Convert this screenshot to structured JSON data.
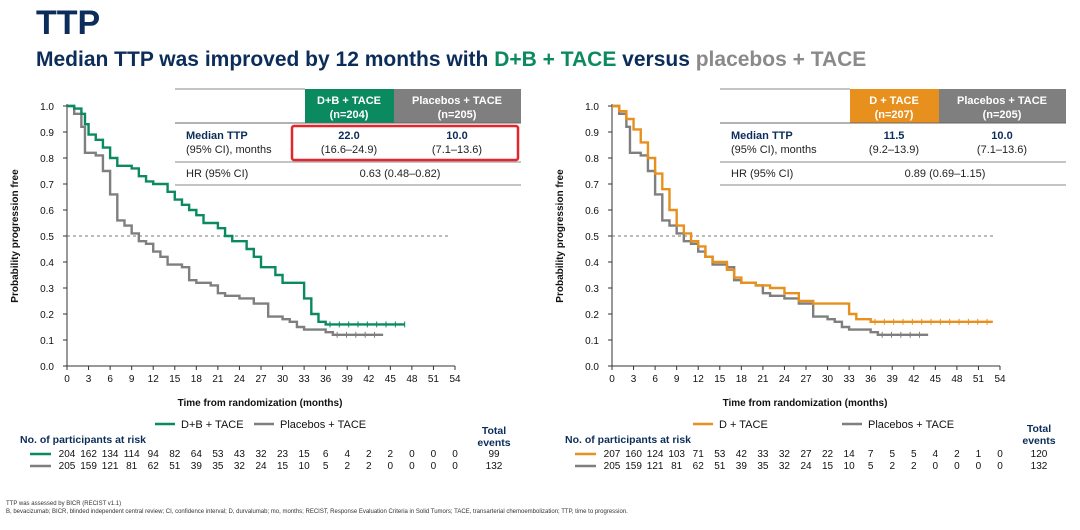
{
  "header": {
    "title": "TTP",
    "subtitle_pre": "Median TTP was improved by 12 months with ",
    "subtitle_trt": "D+B + TACE",
    "subtitle_mid": " versus ",
    "subtitle_ctrl": "placebos + TACE"
  },
  "colors": {
    "navy": "#0c2d5a",
    "green": "#0a8a5e",
    "grey": "#7f7f7f",
    "orange": "#e8901e",
    "highlight": "#e3262a"
  },
  "footnotes": [
    "TTP was assessed by BICR (RECIST v1.1)",
    "B, bevacizumab; BICR, blinded independent central review; CI, confidence interval; D, durvalumab; mo, months; RECIST, Response Evaluation Criteria in Solid Tumors; TACE, transarterial chemoembolization; TTP, time to progression."
  ],
  "chart_data": [
    {
      "type": "line",
      "subtype": "kaplan-meier",
      "xlabel": "Time from randomization (months)",
      "ylabel": "Probability progression free",
      "xlim": [
        0,
        54
      ],
      "ylim": [
        0,
        1
      ],
      "xticks": [
        "0",
        "3",
        "6",
        "9",
        "12",
        "15",
        "18",
        "21",
        "24",
        "27",
        "30",
        "33",
        "36",
        "39",
        "42",
        "45",
        "48",
        "51",
        "54"
      ],
      "yticks": [
        "0.0",
        "0.1",
        "0.2",
        "0.3",
        "0.4",
        "0.5",
        "0.6",
        "0.7",
        "0.8",
        "0.9",
        "1.0"
      ],
      "reference_line": 0.5,
      "highlight_medians": true,
      "series": [
        {
          "name": "D+B + TACE",
          "color": "#0a8a5e",
          "points": [
            [
              0,
              1.0
            ],
            [
              1,
              0.99
            ],
            [
              2,
              0.97
            ],
            [
              2.5,
              0.93
            ],
            [
              3,
              0.89
            ],
            [
              4,
              0.87
            ],
            [
              5,
              0.84
            ],
            [
              6,
              0.8
            ],
            [
              7,
              0.77
            ],
            [
              9,
              0.76
            ],
            [
              10,
              0.73
            ],
            [
              11,
              0.71
            ],
            [
              12,
              0.7
            ],
            [
              14,
              0.67
            ],
            [
              15,
              0.64
            ],
            [
              16,
              0.62
            ],
            [
              17,
              0.6
            ],
            [
              18,
              0.58
            ],
            [
              19,
              0.55
            ],
            [
              21,
              0.53
            ],
            [
              22,
              0.5
            ],
            [
              23,
              0.48
            ],
            [
              25,
              0.45
            ],
            [
              26,
              0.42
            ],
            [
              27,
              0.38
            ],
            [
              29,
              0.35
            ],
            [
              30,
              0.32
            ],
            [
              33,
              0.26
            ],
            [
              34,
              0.2
            ],
            [
              35,
              0.17
            ],
            [
              36,
              0.16
            ],
            [
              47,
              0.16
            ]
          ],
          "end": 47
        },
        {
          "name": "Placebos + TACE",
          "color": "#7f7f7f",
          "points": [
            [
              0,
              1.0
            ],
            [
              1,
              0.97
            ],
            [
              2,
              0.92
            ],
            [
              2.5,
              0.82
            ],
            [
              4,
              0.81
            ],
            [
              5,
              0.75
            ],
            [
              6,
              0.66
            ],
            [
              7,
              0.56
            ],
            [
              8,
              0.54
            ],
            [
              9,
              0.51
            ],
            [
              10,
              0.48
            ],
            [
              11,
              0.47
            ],
            [
              12,
              0.44
            ],
            [
              13,
              0.42
            ],
            [
              14,
              0.39
            ],
            [
              16,
              0.38
            ],
            [
              17,
              0.33
            ],
            [
              18,
              0.32
            ],
            [
              20,
              0.31
            ],
            [
              21,
              0.28
            ],
            [
              22,
              0.27
            ],
            [
              24,
              0.26
            ],
            [
              26,
              0.24
            ],
            [
              28,
              0.19
            ],
            [
              30,
              0.18
            ],
            [
              31,
              0.17
            ],
            [
              32,
              0.15
            ],
            [
              33,
              0.14
            ],
            [
              36,
              0.13
            ],
            [
              37,
              0.12
            ],
            [
              44,
              0.12
            ]
          ],
          "end": 44
        }
      ],
      "table": {
        "trt_header_l1": "D+B + TACE",
        "trt_header_l2": "(n=204)",
        "ctrl_header_l1": "Placebos + TACE",
        "ctrl_header_l2": "(n=205)",
        "median_label": "Median TTP",
        "ci_label": "(95% CI), months",
        "trt_median": "22.0",
        "trt_ci": "(16.6–24.9)",
        "ctrl_median": "10.0",
        "ctrl_ci": "(7.1–13.6)",
        "hr_label": "HR (95% CI)",
        "hr_value": "0.63 (0.48–0.82)"
      },
      "legend": [
        "D+B + TACE",
        "Placebos + TACE"
      ],
      "risk_label": "No. of participants at risk",
      "total_events_label": [
        "Total",
        "events"
      ],
      "risk_rows": [
        {
          "color": "#0a8a5e",
          "values": [
            "204",
            "162",
            "134",
            "114",
            "94",
            "82",
            "64",
            "53",
            "43",
            "32",
            "23",
            "15",
            "6",
            "4",
            "2",
            "2",
            "0",
            "0",
            "0"
          ],
          "events": "99"
        },
        {
          "color": "#7f7f7f",
          "values": [
            "205",
            "159",
            "121",
            "81",
            "62",
            "51",
            "39",
            "35",
            "32",
            "24",
            "15",
            "10",
            "5",
            "2",
            "2",
            "0",
            "0",
            "0",
            "0"
          ],
          "events": "132"
        }
      ]
    },
    {
      "type": "line",
      "subtype": "kaplan-meier",
      "xlabel": "Time from randomization (months)",
      "ylabel": "Probability progression free",
      "xlim": [
        0,
        54
      ],
      "ylim": [
        0,
        1
      ],
      "xticks": [
        "0",
        "3",
        "6",
        "9",
        "12",
        "15",
        "18",
        "21",
        "24",
        "27",
        "30",
        "33",
        "36",
        "39",
        "42",
        "45",
        "48",
        "51",
        "54"
      ],
      "yticks": [
        "0.0",
        "0.1",
        "0.2",
        "0.3",
        "0.4",
        "0.5",
        "0.6",
        "0.7",
        "0.8",
        "0.9",
        "1.0"
      ],
      "reference_line": 0.5,
      "highlight_medians": false,
      "series": [
        {
          "name": "D + TACE",
          "color": "#e8901e",
          "points": [
            [
              0,
              1.0
            ],
            [
              1,
              0.98
            ],
            [
              2,
              0.95
            ],
            [
              3,
              0.91
            ],
            [
              4,
              0.86
            ],
            [
              5,
              0.8
            ],
            [
              6,
              0.74
            ],
            [
              7,
              0.68
            ],
            [
              8,
              0.6
            ],
            [
              9,
              0.54
            ],
            [
              10,
              0.51
            ],
            [
              11,
              0.48
            ],
            [
              12,
              0.46
            ],
            [
              13,
              0.42
            ],
            [
              14,
              0.4
            ],
            [
              16,
              0.37
            ],
            [
              17,
              0.34
            ],
            [
              18,
              0.32
            ],
            [
              20,
              0.31
            ],
            [
              22,
              0.3
            ],
            [
              24,
              0.28
            ],
            [
              26,
              0.25
            ],
            [
              28,
              0.24
            ],
            [
              31,
              0.24
            ],
            [
              33,
              0.2
            ],
            [
              34,
              0.18
            ],
            [
              36,
              0.17
            ],
            [
              53,
              0.17
            ]
          ],
          "end": 53
        },
        {
          "name": "Placebos + TACE",
          "color": "#7f7f7f",
          "points": [
            [
              0,
              1.0
            ],
            [
              1,
              0.97
            ],
            [
              2,
              0.92
            ],
            [
              2.5,
              0.82
            ],
            [
              4,
              0.81
            ],
            [
              5,
              0.75
            ],
            [
              6,
              0.66
            ],
            [
              7,
              0.56
            ],
            [
              8,
              0.54
            ],
            [
              9,
              0.51
            ],
            [
              10,
              0.48
            ],
            [
              11,
              0.47
            ],
            [
              12,
              0.44
            ],
            [
              13,
              0.42
            ],
            [
              14,
              0.39
            ],
            [
              16,
              0.38
            ],
            [
              17,
              0.33
            ],
            [
              18,
              0.32
            ],
            [
              20,
              0.31
            ],
            [
              21,
              0.28
            ],
            [
              22,
              0.27
            ],
            [
              24,
              0.26
            ],
            [
              26,
              0.24
            ],
            [
              28,
              0.19
            ],
            [
              30,
              0.18
            ],
            [
              31,
              0.17
            ],
            [
              32,
              0.15
            ],
            [
              33,
              0.14
            ],
            [
              36,
              0.13
            ],
            [
              37,
              0.12
            ],
            [
              44,
              0.12
            ]
          ],
          "end": 44
        }
      ],
      "table": {
        "trt_header_l1": "D + TACE",
        "trt_header_l2": "(n=207)",
        "ctrl_header_l1": "Placebos + TACE",
        "ctrl_header_l2": "(n=205)",
        "median_label": "Median TTP",
        "ci_label": "(95% CI), months",
        "trt_median": "11.5",
        "trt_ci": "(9.2–13.9)",
        "ctrl_median": "10.0",
        "ctrl_ci": "(7.1–13.6)",
        "hr_label": "HR (95% CI)",
        "hr_value": "0.89 (0.69–1.15)"
      },
      "legend": [
        "D + TACE",
        "Placebos + TACE"
      ],
      "risk_label": "No. of participants at risk",
      "total_events_label": [
        "Total",
        "events"
      ],
      "risk_rows": [
        {
          "color": "#e8901e",
          "values": [
            "207",
            "160",
            "124",
            "103",
            "71",
            "53",
            "42",
            "33",
            "32",
            "27",
            "22",
            "14",
            "7",
            "5",
            "5",
            "4",
            "2",
            "1",
            "0"
          ],
          "events": "120"
        },
        {
          "color": "#7f7f7f",
          "values": [
            "205",
            "159",
            "121",
            "81",
            "62",
            "51",
            "39",
            "35",
            "32",
            "24",
            "15",
            "10",
            "5",
            "2",
            "2",
            "0",
            "0",
            "0",
            "0"
          ],
          "events": "132"
        }
      ]
    }
  ]
}
